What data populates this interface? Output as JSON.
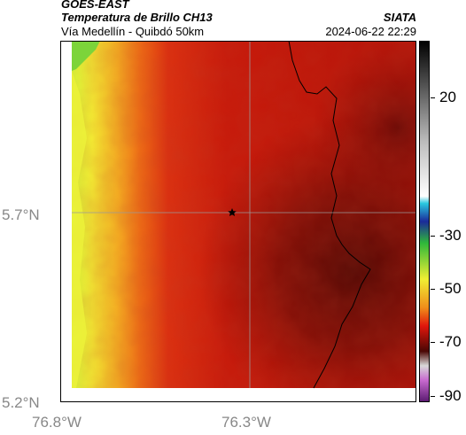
{
  "header": {
    "satellite": "GOES-EAST",
    "product": "Temperatura de Brillo CH13",
    "region": "Vía Medellín - Quibdó 50km",
    "agency": "SIATA",
    "datetime": "2024-06-22 22:29"
  },
  "axes": {
    "lat_ticks": [
      "5.7°N",
      "5.2°N"
    ],
    "lon_ticks": [
      "76.8°W",
      "76.3°W"
    ]
  },
  "colorbar": {
    "labels": [
      "20",
      "-30",
      "-50",
      "-70",
      "-90"
    ]
  },
  "map": {
    "marker": "star-marker",
    "gridlines": true,
    "background_color": "#c81a08",
    "dark_region_color": "#5a0a06",
    "edge_color": "#f2e23a"
  }
}
